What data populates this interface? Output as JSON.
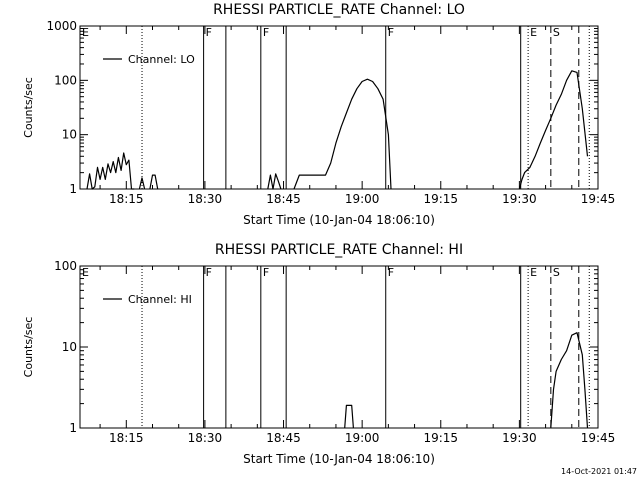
{
  "footer": {
    "timestamp": "14-Oct-2021 01:47"
  },
  "chart_data": [
    {
      "type": "line",
      "title": "RHESSI PARTICLE_RATE Channel: LO",
      "xlabel": "Start Time (10-Jan-04 18:06:10)",
      "ylabel": "Counts/sec",
      "y_scale": "log",
      "ylim": [
        1,
        1000
      ],
      "xlim": [
        "18:06:10",
        "19:45:00"
      ],
      "x_ticks": [
        "18:15",
        "18:30",
        "18:45",
        "19:00",
        "19:15",
        "19:30",
        "19:45"
      ],
      "y_ticks": [
        "1",
        "10",
        "100",
        "1000"
      ],
      "legend": {
        "position": "top-left",
        "label": "Channel: LO"
      },
      "series": [
        {
          "name": "Channel: LO",
          "segments": [
            {
              "x": [
                "18:07:30",
                "18:08:00",
                "18:08:30",
                "18:09:00",
                "18:09:30",
                "18:10:00",
                "18:10:30",
                "18:11:00",
                "18:11:30",
                "18:12:00",
                "18:12:30",
                "18:13:00",
                "18:13:30",
                "18:14:00",
                "18:14:30",
                "18:15:00",
                "18:15:30",
                "18:16:00",
                "18:16:30"
              ],
              "y": [
                0.7,
                1.9,
                0.7,
                1.1,
                2.5,
                1.5,
                2.5,
                1.5,
                2.9,
                2.0,
                3.2,
                2.0,
                3.8,
                2.2,
                4.6,
                2.8,
                3.4,
                1.0,
                0.7
              ]
            },
            {
              "x": [
                "18:17:30",
                "18:18:00",
                "18:18:30"
              ],
              "y": [
                0.7,
                1.6,
                0.7
              ]
            },
            {
              "x": [
                "18:19:30",
                "18:20:00",
                "18:20:30",
                "18:21:00"
              ],
              "y": [
                0.7,
                1.8,
                1.8,
                0.7
              ]
            },
            {
              "x": [
                "18:42:00",
                "18:42:30",
                "18:43:00",
                "18:43:30",
                "18:44:00",
                "18:44:30"
              ],
              "y": [
                0.7,
                1.8,
                1.0,
                1.9,
                1.4,
                0.7
              ]
            },
            {
              "x": [
                "18:47:00",
                "18:48:00",
                "18:49:00",
                "18:50:00",
                "18:51:00",
                "18:52:00",
                "18:53:00",
                "18:54:00",
                "18:55:00",
                "18:56:00",
                "18:57:00",
                "18:58:00",
                "18:59:00",
                "19:00:00",
                "19:01:00",
                "19:02:00",
                "19:03:00",
                "19:04:00",
                "19:05:00",
                "19:05:30"
              ],
              "y": [
                0.7,
                1.8,
                1.8,
                1.8,
                1.8,
                1.8,
                1.8,
                3.0,
                7.0,
                14,
                25,
                45,
                70,
                95,
                105,
                95,
                70,
                45,
                10,
                0.7
              ]
            },
            {
              "x": [
                "19:30:00",
                "19:30:30",
                "19:31:00",
                "19:32:00",
                "19:33:00",
                "19:34:00",
                "19:35:00",
                "19:36:00",
                "19:37:00",
                "19:38:00",
                "19:39:00",
                "19:40:00",
                "19:41:00",
                "19:42:00",
                "19:43:00"
              ],
              "y": [
                0.7,
                1.5,
                2.0,
                2.5,
                4.0,
                7.0,
                12,
                20,
                35,
                55,
                100,
                150,
                140,
                30,
                4.0
              ]
            }
          ]
        }
      ],
      "annotations": [
        {
          "label": "F",
          "time": "18:29:45",
          "style": "solid"
        },
        {
          "label": "",
          "time": "18:34:00",
          "style": "solid"
        },
        {
          "label": "F",
          "time": "18:40:40",
          "style": "solid"
        },
        {
          "label": "",
          "time": "18:45:30",
          "style": "solid"
        },
        {
          "label": "F",
          "time": "19:04:30",
          "style": "solid"
        },
        {
          "label": "",
          "time": "19:30:15",
          "style": "solid"
        },
        {
          "label": "E",
          "time": "19:31:40",
          "style": "dotted"
        },
        {
          "label": "S",
          "time": "19:36:00",
          "style": "dashed"
        },
        {
          "label": "",
          "time": "19:41:20",
          "style": "dashed"
        },
        {
          "label": "",
          "time": "19:43:20",
          "style": "dotted"
        },
        {
          "label": "",
          "time": "18:18:00",
          "style": "dotted"
        },
        {
          "label": "E",
          "time": "18:06:10",
          "style": "edge"
        }
      ]
    },
    {
      "type": "line",
      "title": "RHESSI PARTICLE_RATE Channel: HI",
      "xlabel": "Start Time (10-Jan-04 18:06:10)",
      "ylabel": "Counts/sec",
      "y_scale": "log",
      "ylim": [
        1,
        100
      ],
      "xlim": [
        "18:06:10",
        "19:45:00"
      ],
      "x_ticks": [
        "18:15",
        "18:30",
        "18:45",
        "19:00",
        "19:15",
        "19:30",
        "19:45"
      ],
      "y_ticks": [
        "1",
        "10",
        "100"
      ],
      "legend": {
        "position": "top-left",
        "label": "Channel: HI"
      },
      "series": [
        {
          "name": "Channel: HI",
          "segments": [
            {
              "x": [
                "18:56:40",
                "18:57:00",
                "18:58:00",
                "18:58:20"
              ],
              "y": [
                0.7,
                1.9,
                1.9,
                0.7
              ]
            },
            {
              "x": [
                "19:36:00",
                "19:36:30",
                "19:37:00",
                "19:38:00",
                "19:39:00",
                "19:40:00",
                "19:41:00",
                "19:42:00",
                "19:42:30",
                "19:43:00"
              ],
              "y": [
                0.7,
                3.0,
                5.0,
                7.0,
                9.0,
                14,
                15,
                8.0,
                3.0,
                0.7
              ]
            }
          ]
        }
      ],
      "annotations": [
        {
          "label": "F",
          "time": "18:29:45",
          "style": "solid"
        },
        {
          "label": "",
          "time": "18:34:00",
          "style": "solid"
        },
        {
          "label": "F",
          "time": "18:40:40",
          "style": "solid"
        },
        {
          "label": "",
          "time": "18:45:30",
          "style": "solid"
        },
        {
          "label": "F",
          "time": "19:04:30",
          "style": "solid"
        },
        {
          "label": "",
          "time": "19:30:15",
          "style": "solid"
        },
        {
          "label": "E",
          "time": "19:31:40",
          "style": "dotted"
        },
        {
          "label": "S",
          "time": "19:36:00",
          "style": "dashed"
        },
        {
          "label": "",
          "time": "19:41:20",
          "style": "dashed"
        },
        {
          "label": "",
          "time": "19:43:20",
          "style": "dotted"
        },
        {
          "label": "",
          "time": "18:18:00",
          "style": "dotted"
        },
        {
          "label": "E",
          "time": "18:06:10",
          "style": "edge"
        }
      ]
    }
  ]
}
